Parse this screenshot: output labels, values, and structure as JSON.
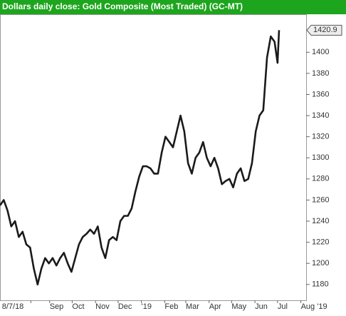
{
  "chart_data": {
    "type": "line",
    "title": "Dollars daily close: Gold Composite (Most Traded) (GC-MT)",
    "x": [
      "2018-06-27",
      "2018-07-02",
      "2018-07-07",
      "2018-07-12",
      "2018-07-17",
      "2018-07-22",
      "2018-07-27",
      "2018-08-01",
      "2018-08-06",
      "2018-08-11",
      "2018-08-16",
      "2018-08-21",
      "2018-08-26",
      "2018-08-31",
      "2018-09-05",
      "2018-09-10",
      "2018-09-15",
      "2018-09-20",
      "2018-09-25",
      "2018-09-30",
      "2018-10-05",
      "2018-10-10",
      "2018-10-15",
      "2018-10-20",
      "2018-10-25",
      "2018-10-30",
      "2018-11-04",
      "2018-11-09",
      "2018-11-14",
      "2018-11-19",
      "2018-11-24",
      "2018-11-29",
      "2018-12-04",
      "2018-12-09",
      "2018-12-14",
      "2018-12-19",
      "2018-12-24",
      "2018-12-29",
      "2019-01-03",
      "2019-01-08",
      "2019-01-13",
      "2019-01-18",
      "2019-01-23",
      "2019-01-28",
      "2019-02-02",
      "2019-02-07",
      "2019-02-12",
      "2019-02-17",
      "2019-02-22",
      "2019-02-27",
      "2019-03-04",
      "2019-03-09",
      "2019-03-14",
      "2019-03-19",
      "2019-03-24",
      "2019-03-29",
      "2019-04-03",
      "2019-04-08",
      "2019-04-13",
      "2019-04-18",
      "2019-04-23",
      "2019-04-28",
      "2019-05-03",
      "2019-05-08",
      "2019-05-13",
      "2019-05-18",
      "2019-05-23",
      "2019-05-28",
      "2019-06-02",
      "2019-06-07",
      "2019-06-12",
      "2019-06-17",
      "2019-06-22",
      "2019-06-27",
      "2019-07-01",
      "2019-07-03"
    ],
    "series": [
      {
        "color": "#1a1a1a",
        "values": [
          1255,
          1260,
          1250,
          1235,
          1240,
          1225,
          1230,
          1218,
          1215,
          1195,
          1180,
          1195,
          1205,
          1200,
          1205,
          1198,
          1205,
          1210,
          1200,
          1192,
          1205,
          1218,
          1225,
          1228,
          1232,
          1228,
          1235,
          1215,
          1205,
          1222,
          1225,
          1222,
          1240,
          1245,
          1245,
          1252,
          1268,
          1282,
          1292,
          1292,
          1290,
          1285,
          1285,
          1305,
          1320,
          1315,
          1310,
          1325,
          1340,
          1325,
          1295,
          1285,
          1300,
          1305,
          1315,
          1300,
          1292,
          1300,
          1290,
          1275,
          1278,
          1280,
          1272,
          1285,
          1290,
          1278,
          1280,
          1295,
          1325,
          1340,
          1345,
          1395,
          1415,
          1410,
          1390,
          1420.9
        ]
      }
    ],
    "xlim": [
      "2018-06-27",
      "2019-08-08"
    ],
    "xticks": [
      {
        "value": "2018-08-07",
        "label": "8/7/18"
      },
      {
        "value": "2018-09-01",
        "label": "Sep"
      },
      {
        "value": "2018-10-01",
        "label": "Oct"
      },
      {
        "value": "2018-11-01",
        "label": "Nov"
      },
      {
        "value": "2018-12-01",
        "label": "Dec"
      },
      {
        "value": "2019-01-01",
        "label": "'19"
      },
      {
        "value": "2019-02-01",
        "label": "Feb"
      },
      {
        "value": "2019-03-01",
        "label": "Mar"
      },
      {
        "value": "2019-04-01",
        "label": "Apr"
      },
      {
        "value": "2019-05-01",
        "label": "May"
      },
      {
        "value": "2019-06-01",
        "label": "Jun"
      },
      {
        "value": "2019-07-01",
        "label": "Jul"
      },
      {
        "value": "2019-08-01",
        "label": "Aug '19"
      }
    ],
    "ylim": [
      1165,
      1436
    ],
    "yticks": [
      1180,
      1200,
      1220,
      1240,
      1260,
      1280,
      1300,
      1320,
      1340,
      1360,
      1380,
      1400
    ],
    "grid": false
  }
}
